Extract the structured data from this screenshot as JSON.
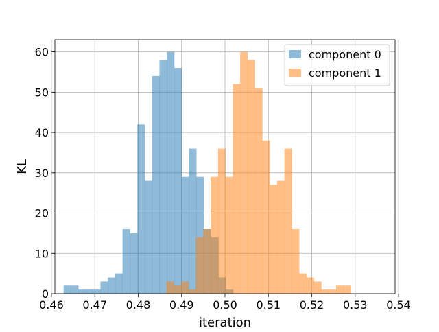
{
  "chart_data": {
    "type": "bar",
    "subtype": "overlaid-histogram",
    "xlabel": "iteration",
    "ylabel": "KL",
    "xlim": [
      0.4608,
      0.5392
    ],
    "ylim": [
      0,
      63
    ],
    "xticks": [
      0.46,
      0.47,
      0.48,
      0.49,
      0.5,
      0.51,
      0.52,
      0.53,
      0.54
    ],
    "xtick_labels": [
      "0.46",
      "0.47",
      "0.48",
      "0.49",
      "0.50",
      "0.51",
      "0.52",
      "0.53",
      "0.54"
    ],
    "yticks": [
      0,
      10,
      20,
      30,
      40,
      50,
      60
    ],
    "ytick_labels": [
      "0",
      "10",
      "20",
      "30",
      "40",
      "50",
      "60"
    ],
    "grid": true,
    "legend_position": "top-right",
    "bin_width": 0.0017,
    "series": [
      {
        "name": "component 0",
        "color": "#1f77b4",
        "alpha": 0.5,
        "bin_start": 0.4628,
        "values": [
          2,
          2,
          1,
          1,
          1,
          3,
          4,
          5,
          16,
          15,
          42,
          28,
          54,
          58,
          60,
          56,
          29,
          36,
          29,
          16,
          14,
          4,
          1
        ]
      },
      {
        "name": "component 1",
        "color": "#ff7f0e",
        "alpha": 0.5,
        "bin_start": 0.4865,
        "values": [
          3,
          2,
          3,
          1,
          14,
          16,
          29,
          36,
          29,
          52,
          60,
          58,
          51,
          38,
          27,
          28,
          36,
          16,
          5,
          4,
          3,
          1,
          1,
          2,
          2
        ]
      }
    ]
  }
}
